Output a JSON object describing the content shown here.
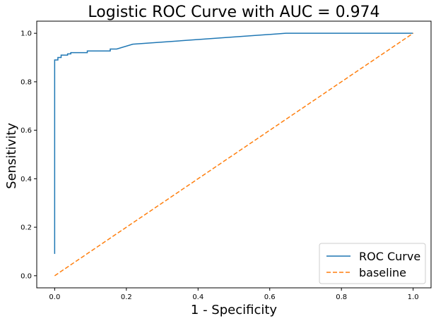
{
  "chart_data": {
    "type": "line",
    "title": "Logistic ROC Curve with AUC = 0.974",
    "xlabel": "1 - Specificity",
    "ylabel": "Sensitivity",
    "xlim": [
      -0.05,
      1.05
    ],
    "ylim": [
      -0.05,
      1.05
    ],
    "x_ticks": [
      0.0,
      0.2,
      0.4,
      0.6,
      0.8,
      1.0
    ],
    "x_tick_labels": [
      "0.0",
      "0.2",
      "0.4",
      "0.6",
      "0.8",
      "1.0"
    ],
    "y_ticks": [
      0.0,
      0.2,
      0.4,
      0.6,
      0.8,
      1.0
    ],
    "y_tick_labels": [
      "0.0",
      "0.2",
      "0.4",
      "0.6",
      "0.8",
      "1.0"
    ],
    "grid": false,
    "legend_position": "lower-right",
    "series": [
      {
        "name": "ROC Curve",
        "color": "#1f77b4",
        "style": "solid",
        "x": [
          0.0,
          0.0,
          0.009,
          0.009,
          0.018,
          0.018,
          0.027,
          0.027,
          0.036,
          0.036,
          0.045,
          0.045,
          0.091,
          0.091,
          0.155,
          0.155,
          0.173,
          0.218,
          0.645,
          1.0
        ],
        "y": [
          0.09,
          0.89,
          0.89,
          0.9,
          0.9,
          0.91,
          0.91,
          0.91,
          0.91,
          0.915,
          0.915,
          0.92,
          0.92,
          0.927,
          0.927,
          0.935,
          0.935,
          0.955,
          1.0,
          1.0
        ]
      },
      {
        "name": "baseline",
        "color": "#ff7f0e",
        "style": "dashed",
        "x": [
          0.0,
          1.0
        ],
        "y": [
          0.0,
          1.0
        ]
      }
    ]
  }
}
